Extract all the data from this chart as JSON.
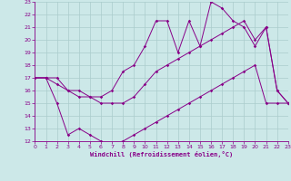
{
  "xlabel": "Windchill (Refroidissement éolien,°C)",
  "bg_color": "#cce8e8",
  "line_color": "#880088",
  "grid_color": "#aacccc",
  "xmin": 0,
  "xmax": 23,
  "ymin": 12,
  "ymax": 23,
  "x_ticks": [
    0,
    1,
    2,
    3,
    4,
    5,
    6,
    7,
    8,
    9,
    10,
    11,
    12,
    13,
    14,
    15,
    16,
    17,
    18,
    19,
    20,
    21,
    22,
    23
  ],
  "y_ticks": [
    12,
    13,
    14,
    15,
    16,
    17,
    18,
    19,
    20,
    21,
    22,
    23
  ],
  "series1_x": [
    0,
    1,
    2,
    3,
    4,
    5,
    6,
    7,
    8,
    9,
    10,
    11,
    12,
    13,
    14,
    15,
    16,
    17,
    18,
    19,
    20,
    21,
    22,
    23
  ],
  "series1_y": [
    17,
    17,
    17,
    16,
    16,
    15.5,
    15.5,
    16,
    17.5,
    18,
    19.5,
    21.5,
    21.5,
    19,
    21.5,
    19.5,
    23,
    22.5,
    21.5,
    21,
    19.5,
    21,
    16,
    15
  ],
  "series2_x": [
    0,
    1,
    2,
    3,
    4,
    5,
    6,
    7,
    8,
    9,
    10,
    11,
    12,
    13,
    14,
    15,
    16,
    17,
    18,
    19,
    20,
    21,
    22,
    23
  ],
  "series2_y": [
    17,
    17,
    16.5,
    16,
    15.5,
    15.5,
    15,
    15,
    15,
    15.5,
    16.5,
    17.5,
    18,
    18.5,
    19,
    19.5,
    20,
    20.5,
    21,
    21.5,
    20,
    21,
    16,
    15
  ],
  "series3_x": [
    0,
    1,
    2,
    3,
    4,
    5,
    6,
    7,
    8,
    9,
    10,
    11,
    12,
    13,
    14,
    15,
    16,
    17,
    18,
    19,
    20,
    21,
    22,
    23
  ],
  "series3_y": [
    17,
    17,
    15,
    12.5,
    13,
    12.5,
    12,
    11.8,
    12,
    12.5,
    13,
    13.5,
    14,
    14.5,
    15,
    15.5,
    16,
    16.5,
    17,
    17.5,
    18,
    15,
    15,
    15
  ]
}
